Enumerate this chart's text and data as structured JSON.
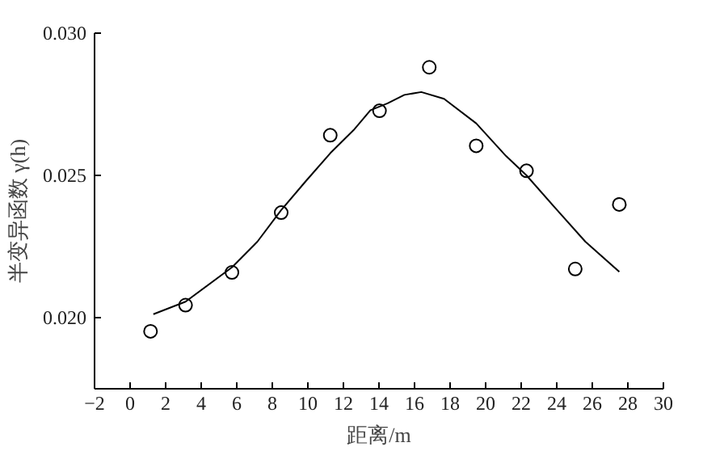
{
  "chart_data": {
    "type": "scatter",
    "xlabel": "距离/m",
    "ylabel": "半变异函数 γ(h)",
    "xlim": [
      -2,
      30
    ],
    "xticks": [
      -2,
      0,
      2,
      4,
      6,
      8,
      10,
      12,
      14,
      16,
      18,
      20,
      22,
      24,
      26,
      28,
      30
    ],
    "ylim": [
      0.0175,
      0.03
    ],
    "yticks": [
      {
        "value": 0.02,
        "label": "0.020"
      },
      {
        "value": 0.025,
        "label": "0.025"
      },
      {
        "value": 0.03,
        "label": "0.030"
      }
    ],
    "grid": false,
    "series": [
      {
        "marker": "circle",
        "color": "#000000",
        "x": [
          1.15,
          3.12,
          5.73,
          8.5,
          11.26,
          14.03,
          16.83,
          19.47,
          22.3,
          25.04,
          27.52
        ],
        "values": [
          0.01952,
          0.02044,
          0.02159,
          0.02369,
          0.02641,
          0.02727,
          0.0288,
          0.02604,
          0.02516,
          0.02171,
          0.02398
        ]
      },
      {
        "type": "line",
        "marker": "none",
        "line_style": "solid",
        "color": "#000000",
        "x": [
          1.31,
          3.12,
          5.73,
          7.16,
          8.5,
          9.86,
          11.26,
          12.57,
          13.52,
          14.48,
          15.43,
          16.38,
          17.66,
          19.47,
          21.15,
          22.3,
          24.02,
          25.61,
          27.52
        ],
        "values": [
          0.02012,
          0.02056,
          0.02177,
          0.02267,
          0.02378,
          0.02478,
          0.02578,
          0.02659,
          0.02729,
          0.02753,
          0.02783,
          0.02793,
          0.02769,
          0.02683,
          0.02568,
          0.025,
          0.02378,
          0.02267,
          0.02161
        ]
      }
    ]
  }
}
